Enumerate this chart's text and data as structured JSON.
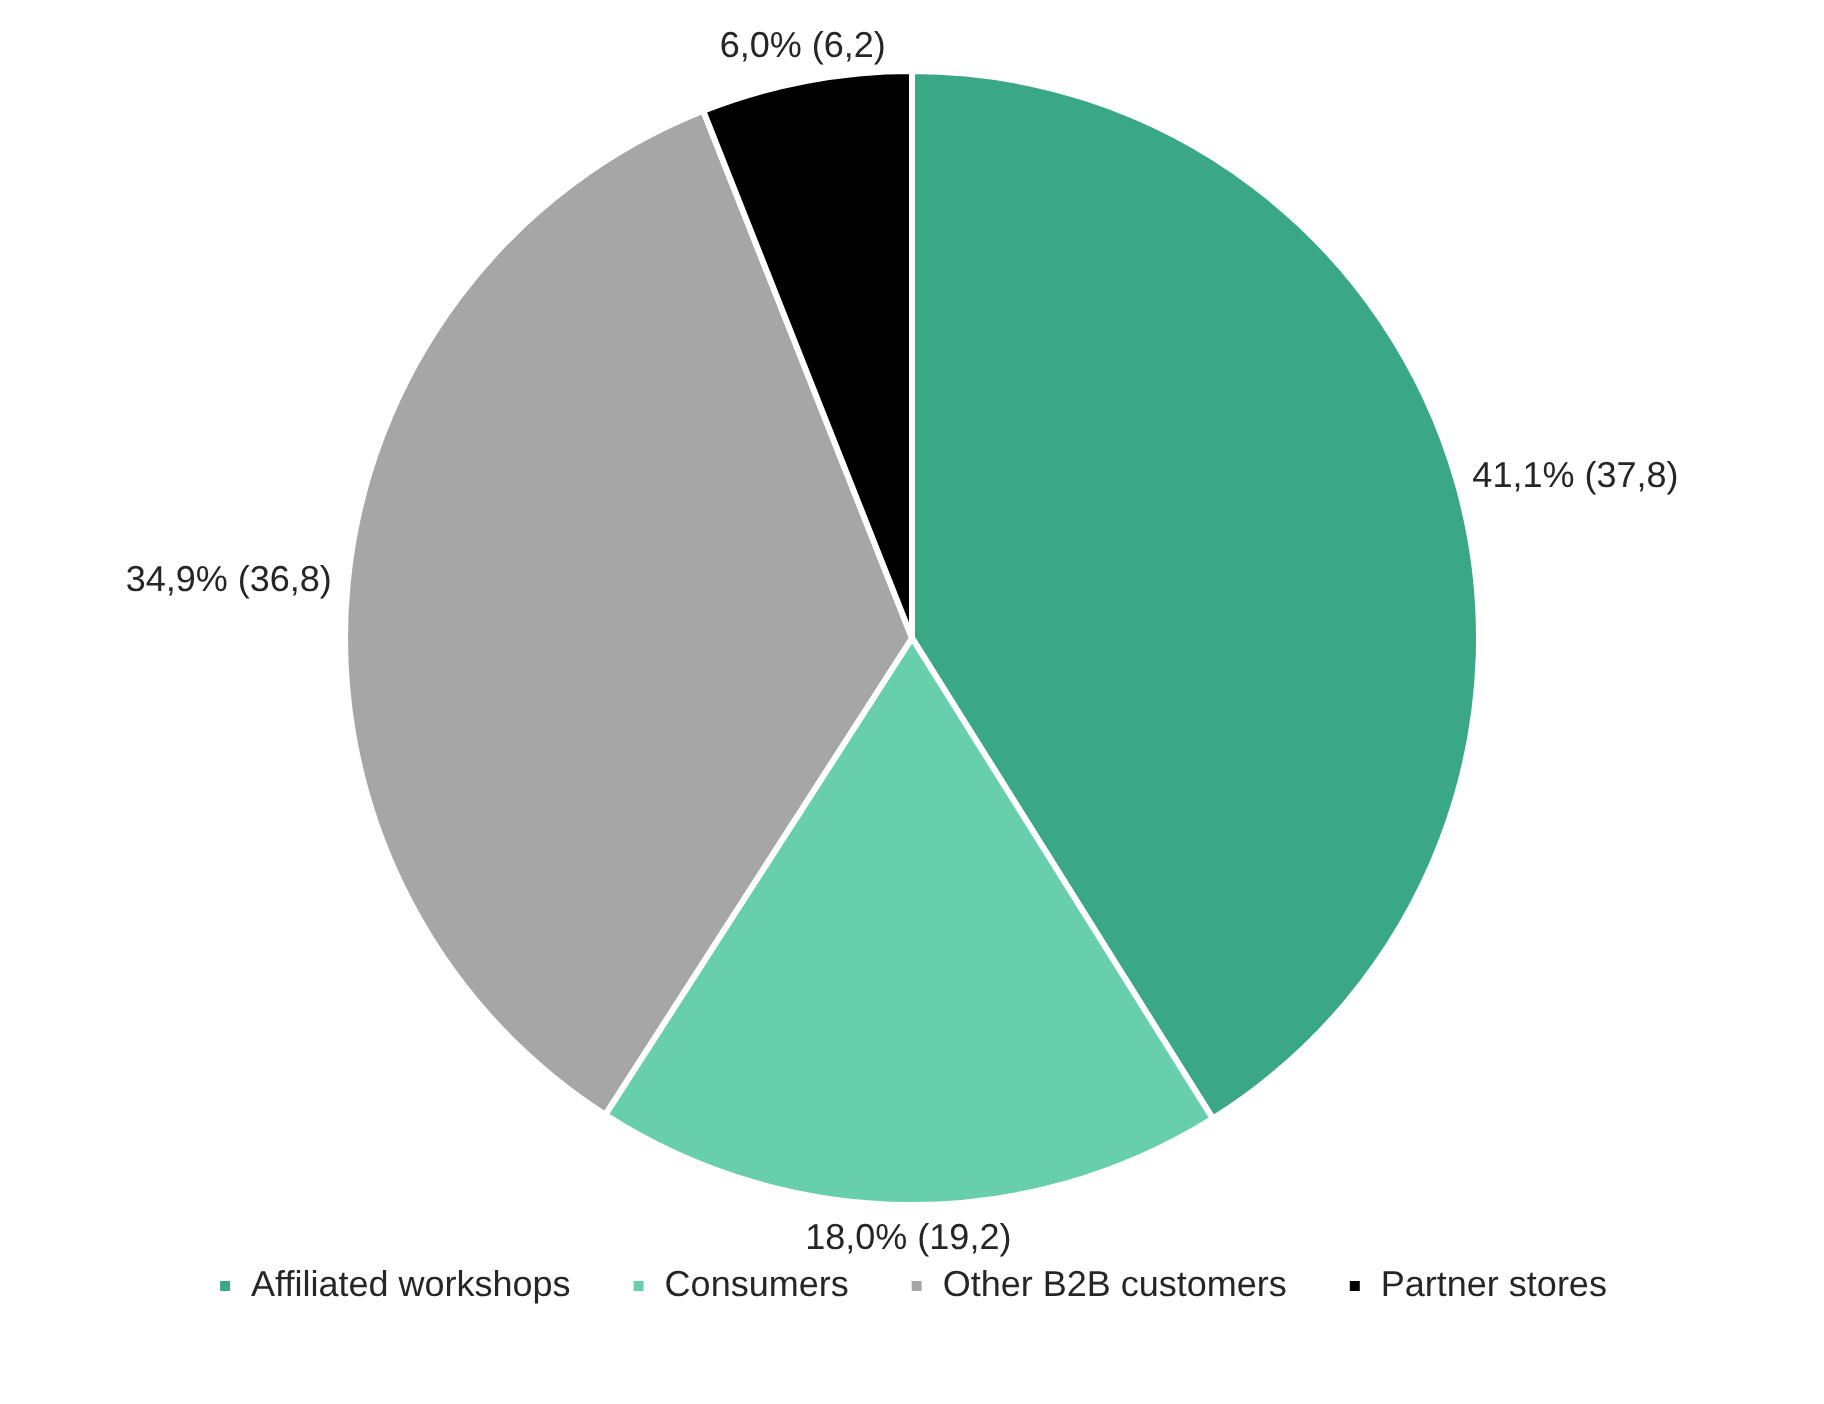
{
  "chart_data": {
    "type": "pie",
    "categories": [
      "Affiliated workshops",
      "Consumers",
      "Other B2B customers",
      "Partner stores"
    ],
    "values": [
      41.1,
      18.0,
      34.9,
      6.0
    ],
    "colors": [
      "#3aa886",
      "#67cfac",
      "#a6a6a6",
      "#000000"
    ],
    "value_labels": [
      "41,1% (37,8)",
      "18,0% (19,2)",
      "34,9% (36,8)",
      "6,0% (6,2)"
    ],
    "legend": "bottom"
  }
}
